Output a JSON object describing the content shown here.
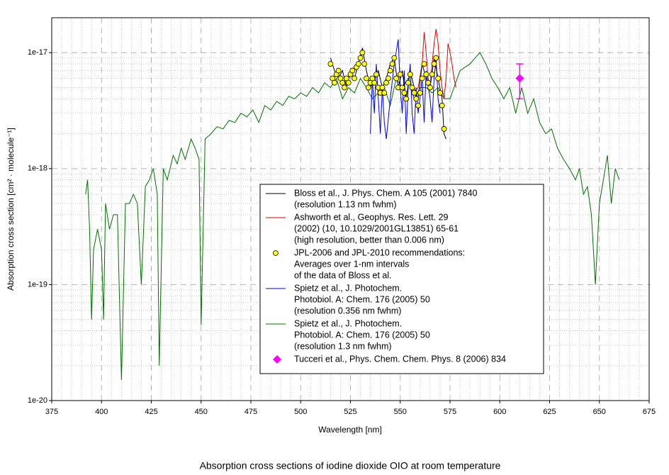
{
  "chart_data": {
    "type": "line",
    "title": "Absorption cross sections of iodine dioxide OIO at room temperature",
    "xlabel": "Wavelength [nm]",
    "ylabel": "Absorption cross section [cm² · molecule⁻¹]",
    "xlim": [
      375,
      675
    ],
    "ylim": [
      1e-20,
      2e-17
    ],
    "log_y": true,
    "grid": true,
    "minor_grid": true,
    "xticks": [
      375,
      400,
      425,
      450,
      475,
      500,
      525,
      550,
      575,
      600,
      625,
      650,
      675
    ],
    "yticks": [
      {
        "value": 1e-20,
        "label": "1e-20"
      },
      {
        "value": 1e-19,
        "label": "1e-19"
      },
      {
        "value": 1e-18,
        "label": "1e-18"
      },
      {
        "value": 1e-17,
        "label": "1e-17"
      }
    ],
    "xminorticks": [
      380,
      385,
      390,
      395,
      405,
      410,
      415,
      420,
      430,
      435,
      440,
      445,
      455,
      460,
      465,
      470,
      480,
      485,
      490,
      495,
      505,
      510,
      515,
      520,
      530,
      535,
      540,
      545,
      555,
      560,
      565,
      570,
      580,
      585,
      590,
      595,
      605,
      610,
      615,
      620,
      630,
      635,
      640,
      645,
      655,
      660,
      665,
      670
    ],
    "yminorticks": [
      2e-20,
      3e-20,
      4e-20,
      5e-20,
      6e-20,
      7e-20,
      8e-20,
      9e-20,
      2e-19,
      3e-19,
      4e-19,
      5e-19,
      6e-19,
      7e-19,
      8e-19,
      9e-19,
      2e-18,
      3e-18,
      4e-18,
      5e-18,
      6e-18,
      7e-18,
      8e-18,
      9e-18
    ],
    "series": [
      {
        "name": [
          "Bloss et al., J. Phys. Chem. A 105 (2001) 7840",
          "(resolution 1.13 nm fwhm)"
        ],
        "color": "#000000",
        "kind": "line",
        "x": [
          515,
          517,
          519,
          521,
          523,
          525,
          527,
          529,
          531,
          533,
          535,
          537,
          539,
          541,
          543,
          545,
          547,
          549,
          551,
          553,
          555,
          557,
          559,
          561,
          563,
          565,
          567,
          569,
          571,
          572,
          573
        ],
        "values": [
          9e-18,
          7e-18,
          6e-18,
          7e-18,
          5e-18,
          7e-18,
          6e-18,
          8e-18,
          1.1e-17,
          7e-18,
          5e-18,
          6e-18,
          7e-18,
          5e-18,
          6e-18,
          8e-18,
          9e-18,
          5e-18,
          7e-18,
          4e-18,
          7e-18,
          5e-18,
          4e-18,
          8e-18,
          6e-18,
          5e-18,
          9e-18,
          6e-18,
          4e-18,
          2e-18,
          1.8e-18
        ]
      },
      {
        "name": [
          "Ashworth et al., Geophys. Res. Lett. 29",
          "(2002) (10, 10.1029/2001GL13851) 65-61",
          "(high resolution, better than 0.006 nm)"
        ],
        "color": "#e00000",
        "kind": "line",
        "x": [
          555,
          557,
          559,
          561,
          562,
          563,
          564,
          565,
          566,
          567,
          568,
          569,
          570,
          571,
          572,
          573,
          574,
          575,
          576,
          577,
          578
        ],
        "values": [
          5e-18,
          4.5e-18,
          5e-18,
          8e-18,
          1.5e-17,
          1e-17,
          6e-18,
          5e-18,
          8e-18,
          1.2e-17,
          1.6e-17,
          1.2e-17,
          7e-18,
          5e-18,
          4e-18,
          6e-18,
          1.2e-17,
          1e-17,
          8e-18,
          6e-18,
          5e-18
        ]
      },
      {
        "name": [
          "JPL-2006 and JPL-2010 recommendations:",
          "Averages over 1-nm intervals",
          "of the data of Bloss et al."
        ],
        "color": "#ffff00",
        "kind": "points",
        "x": [
          515,
          516,
          517,
          518,
          519,
          520,
          521,
          522,
          523,
          524,
          525,
          526,
          527,
          528,
          529,
          530,
          531,
          532,
          533,
          534,
          535,
          536,
          537,
          538,
          539,
          540,
          541,
          542,
          543,
          544,
          545,
          546,
          547,
          548,
          549,
          550,
          551,
          552,
          553,
          554,
          555,
          556,
          557,
          558,
          559,
          560,
          561,
          562,
          563,
          564,
          565,
          566,
          567,
          568,
          569,
          570,
          571,
          572
        ],
        "values": [
          8e-18,
          6e-18,
          5.5e-18,
          6.5e-18,
          7e-18,
          6e-18,
          5.5e-18,
          5e-18,
          6e-18,
          5.5e-18,
          6.5e-18,
          7e-18,
          6e-18,
          7.5e-18,
          8e-18,
          9e-18,
          1e-17,
          8e-18,
          6e-18,
          5e-18,
          5.5e-18,
          6e-18,
          5.5e-18,
          6.5e-18,
          5e-18,
          4.5e-18,
          5e-18,
          4.5e-18,
          5.5e-18,
          6e-18,
          7e-18,
          8e-18,
          9e-18,
          6e-18,
          5e-18,
          6.5e-18,
          5e-18,
          4.5e-18,
          4e-18,
          5.5e-18,
          6.5e-18,
          5e-18,
          4.5e-18,
          4e-18,
          3.5e-18,
          4.5e-18,
          6e-18,
          8e-18,
          6.5e-18,
          5.5e-18,
          5e-18,
          6.5e-18,
          8e-18,
          9e-18,
          6e-18,
          4.5e-18,
          3.5e-18,
          2.2e-18
        ]
      },
      {
        "name": [
          "Spietz et al., J. Photochem.",
          "Photobiol. A: Chem. 176 (2005) 50",
          "(resolution 0.356 nm fwhm)"
        ],
        "color": "#0000e0",
        "kind": "line",
        "x": [
          535,
          536,
          537,
          538,
          539,
          540,
          541,
          542,
          543,
          545,
          547,
          549,
          550,
          551,
          552,
          553,
          554,
          555,
          556,
          557,
          558,
          559,
          561,
          562,
          563,
          565,
          566,
          567,
          568,
          569,
          570
        ],
        "values": [
          2e-18,
          6e-18,
          3e-18,
          8e-18,
          4e-18,
          2e-18,
          5e-18,
          2.5e-18,
          1.8e-18,
          4e-18,
          8e-18,
          1.3e-17,
          5e-18,
          3e-18,
          7e-18,
          2e-18,
          5e-18,
          8e-18,
          3e-18,
          2e-18,
          5e-18,
          3e-18,
          6e-18,
          2.5e-18,
          7e-18,
          4e-18,
          2.5e-18,
          6e-18,
          9e-18,
          4e-18,
          3e-18
        ]
      },
      {
        "name": [
          "Spietz et al., J. Photochem.",
          "Photobiol. A: Chem. 176 (2005) 50",
          "(resolution 1.3 nm fwhm)"
        ],
        "color": "#007000",
        "kind": "line",
        "x": [
          392,
          393,
          394,
          395,
          396,
          398,
          400,
          401,
          402,
          404,
          406,
          408,
          410,
          412,
          414,
          416,
          418,
          420,
          422,
          424,
          426,
          428,
          429,
          431,
          433,
          436,
          438,
          440,
          442,
          445,
          447,
          449,
          450,
          452,
          455,
          458,
          461,
          464,
          467,
          470,
          473,
          476,
          479,
          482,
          485,
          488,
          491,
          494,
          497,
          500,
          503,
          506,
          509,
          512,
          515,
          518,
          521,
          524,
          527,
          530,
          533,
          536,
          539,
          542,
          545,
          548,
          551,
          554,
          557,
          560,
          563,
          566,
          569,
          572,
          575,
          580,
          585,
          590,
          593,
          596,
          599,
          602,
          605,
          608,
          611,
          614,
          617,
          620,
          623,
          626,
          629,
          632,
          635,
          638,
          640,
          642,
          644,
          646,
          648,
          650,
          652,
          654,
          656,
          658,
          660
        ],
        "values": [
          6e-19,
          8e-19,
          3e-19,
          5e-20,
          2e-19,
          3e-19,
          2e-19,
          5e-20,
          5e-19,
          3e-19,
          4e-19,
          4e-19,
          1.5e-20,
          5e-19,
          5e-19,
          6e-19,
          5e-19,
          1e-19,
          7e-19,
          8e-19,
          1e-18,
          6e-19,
          2e-20,
          1e-18,
          8e-19,
          1.3e-18,
          1.1e-18,
          1.5e-18,
          1.2e-18,
          1.8e-18,
          1.5e-18,
          1.2e-18,
          4.5e-20,
          1.8e-18,
          2e-18,
          2.3e-18,
          2.2e-18,
          2.6e-18,
          2.5e-18,
          3e-18,
          2.8e-18,
          3.2e-18,
          2.5e-18,
          3.5e-18,
          3.2e-18,
          3.8e-18,
          3.5e-18,
          4.2e-18,
          4e-18,
          4.5e-18,
          4.2e-18,
          5e-18,
          4.5e-18,
          5.5e-18,
          5e-18,
          6e-18,
          4e-18,
          5e-18,
          4.5e-18,
          6e-18,
          5e-18,
          4e-18,
          4.5e-18,
          5e-18,
          3.5e-18,
          6e-18,
          5e-18,
          6e-18,
          4e-18,
          5e-18,
          5e-18,
          4.5e-18,
          5e-18,
          4e-18,
          4e-18,
          7e-18,
          8e-18,
          1e-17,
          8e-18,
          6e-18,
          5e-18,
          4e-18,
          5e-18,
          3e-18,
          5e-18,
          3e-18,
          4e-18,
          2.5e-18,
          2e-18,
          2.2e-18,
          1.5e-18,
          1.2e-18,
          1e-18,
          8e-19,
          1e-18,
          6e-19,
          7e-19,
          4e-19,
          1e-19,
          5e-19,
          8e-19,
          1.3e-18,
          5e-19,
          1e-18,
          8e-19
        ]
      },
      {
        "name": [
          "Tucceri et al., Phys. Chem. Chem. Phys. 8 (2006) 834"
        ],
        "color": "#ff00ff",
        "kind": "diamond",
        "x": [
          610
        ],
        "values": [
          6e-18
        ],
        "yerr": [
          2e-18
        ]
      }
    ]
  }
}
